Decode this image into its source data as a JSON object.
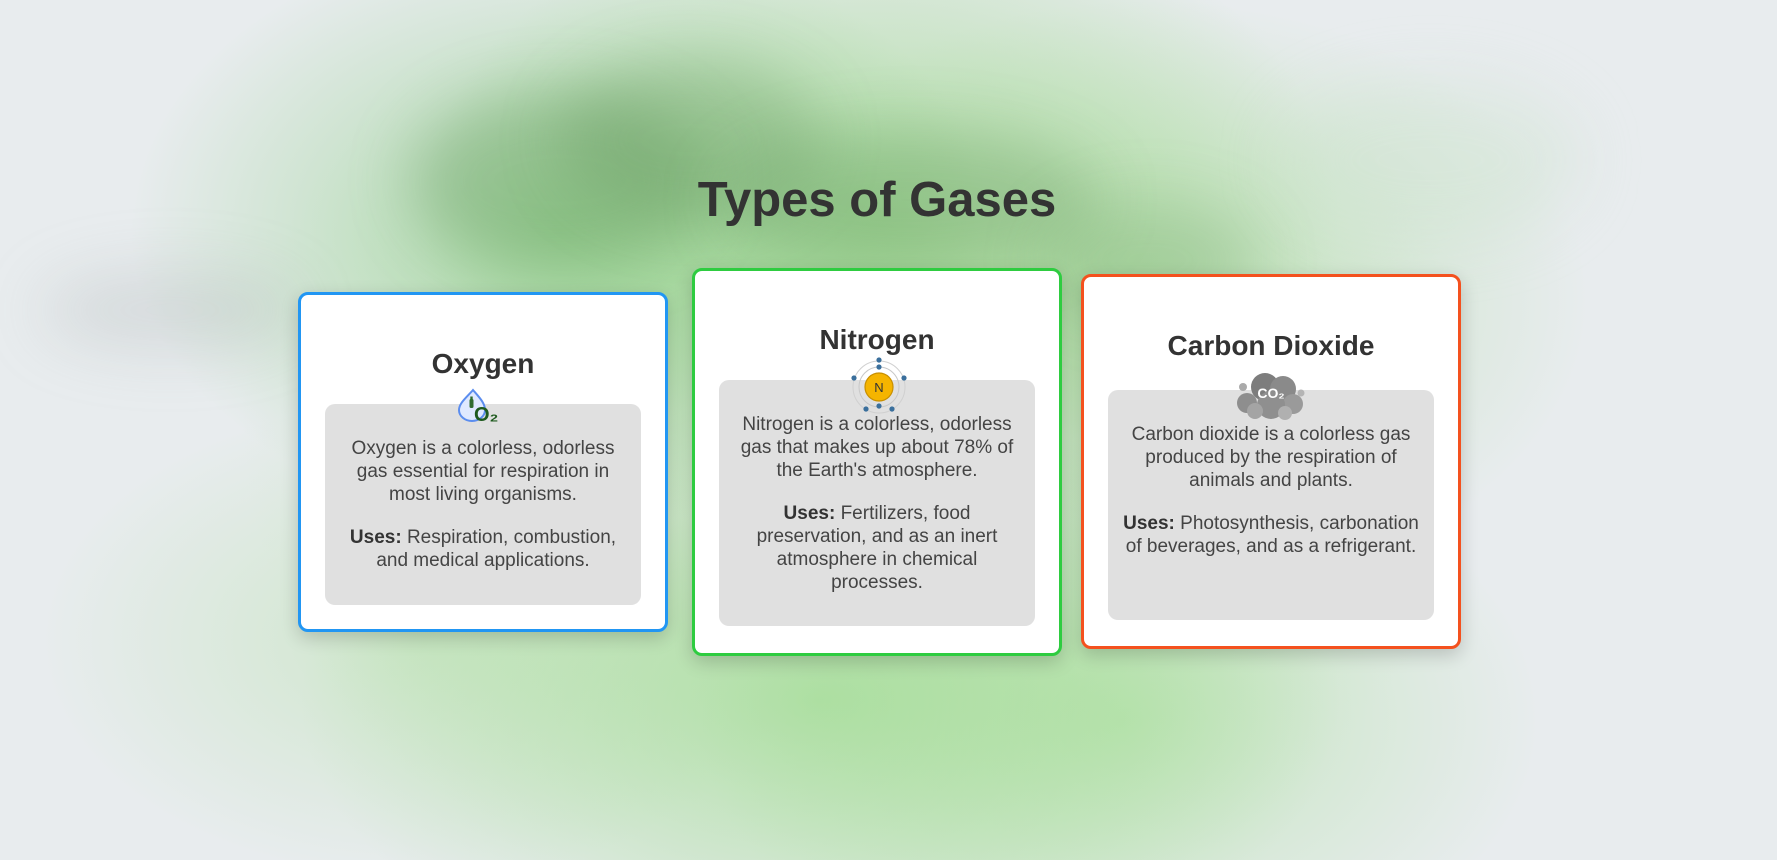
{
  "page": {
    "title": "Types of Gases"
  },
  "uses_label": "Uses:",
  "cards": [
    {
      "name": "Oxygen",
      "icon": "o2-droplet-icon",
      "icon_text": "O₂",
      "border_color": "#2196f3",
      "description": "Oxygen is a colorless, odorless gas essential for respiration in most living organisms.",
      "uses": "Respiration, combustion, and medical applications."
    },
    {
      "name": "Nitrogen",
      "icon": "nitrogen-atom-icon",
      "icon_text": "N",
      "border_color": "#2ecc40",
      "description": "Nitrogen is a colorless, odorless gas that makes up about 78% of the Earth's atmosphere.",
      "uses": "Fertilizers, food preservation, and as an inert atmosphere in chemical processes."
    },
    {
      "name": "Carbon Dioxide",
      "icon": "co2-cloud-icon",
      "icon_text": "CO₂",
      "border_color": "#f4511e",
      "description": "Carbon dioxide is a colorless gas produced by the respiration of animals and plants.",
      "uses": "Photosynthesis, carbonation of beverages, and as a refrigerant."
    }
  ]
}
